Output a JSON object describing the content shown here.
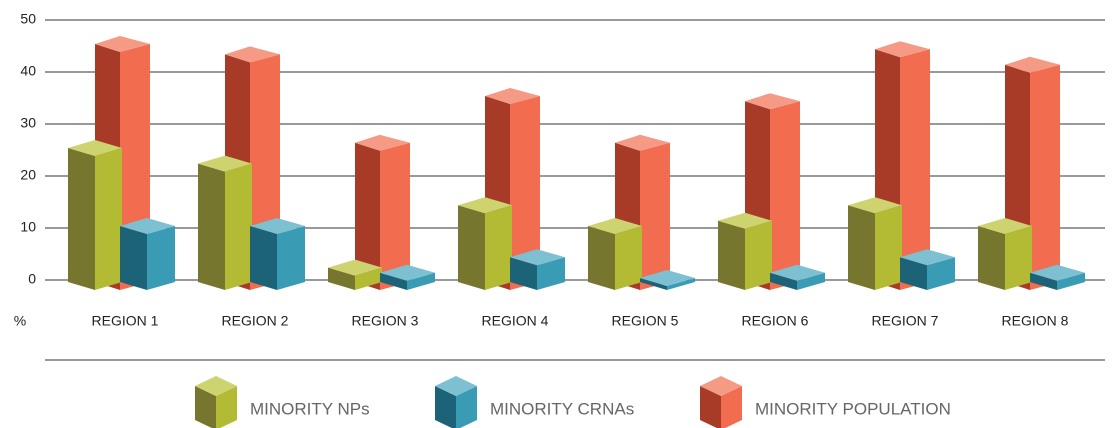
{
  "chart_data": {
    "type": "bar3d",
    "y_label": "%",
    "categories": [
      "REGION 1",
      "REGION 2",
      "REGION 3",
      "REGION 4",
      "REGION 5",
      "REGION 6",
      "REGION 7",
      "REGION 8"
    ],
    "series": [
      {
        "name": "MINORITY NPs",
        "color": "#b3bb34",
        "shade_color": "#76762e",
        "top_color": "#cdd46f",
        "values": [
          25,
          22,
          2,
          14,
          10,
          11,
          14,
          10
        ]
      },
      {
        "name": "MINORITY CRNAs",
        "color": "#3a9bb4",
        "shade_color": "#1d6378",
        "top_color": "#7cc0d2",
        "values": [
          10,
          10,
          1,
          4,
          0,
          1,
          4,
          1
        ]
      },
      {
        "name": "MINORITY POPULATION",
        "color": "#f26c50",
        "shade_color": "#a83a28",
        "top_color": "#f59a85",
        "values": [
          45,
          43,
          26,
          35,
          26,
          34,
          44,
          41
        ]
      }
    ],
    "ylim": [
      0,
      50
    ],
    "yticks": [
      0,
      10,
      20,
      30,
      40,
      50
    ],
    "grid": true
  }
}
